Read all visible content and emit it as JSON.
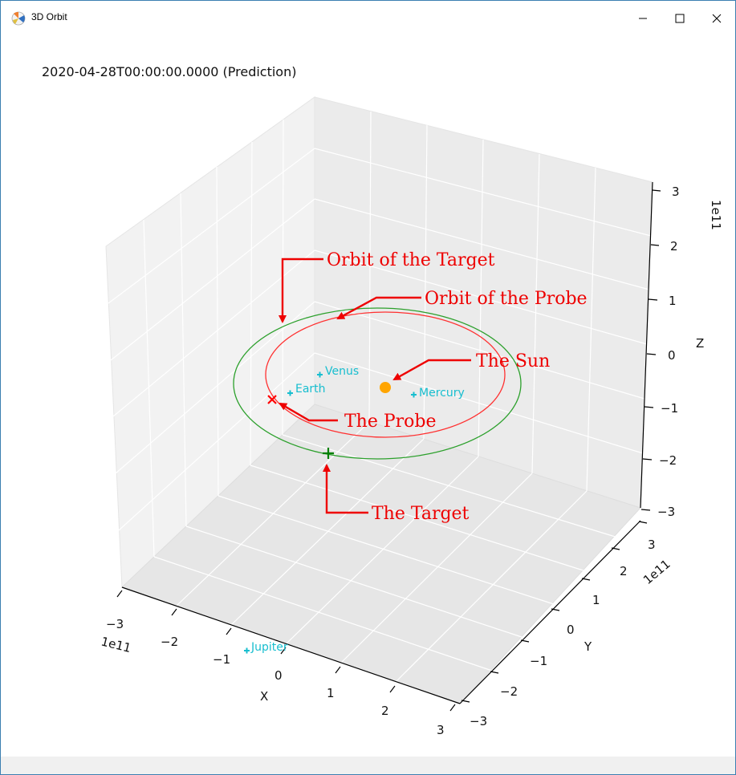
{
  "window": {
    "title": "3D Orbit",
    "controls": {
      "minimize": "minimize",
      "maximize": "maximize",
      "close": "close"
    }
  },
  "plot": {
    "timestamp": "2020-04-28T00:00:00.0000 (Prediction)",
    "axes": {
      "x": {
        "label": "X",
        "exponent": "1e11",
        "ticks": [
          "−3",
          "−2",
          "−1",
          "0",
          "1",
          "2",
          "3"
        ]
      },
      "y": {
        "label": "Y",
        "exponent": "1e11",
        "ticks": [
          "−3",
          "−2",
          "−1",
          "0",
          "1",
          "2",
          "3"
        ]
      },
      "z": {
        "label": "Z",
        "exponent": "1e11",
        "ticks": [
          "3",
          "2",
          "1",
          "0",
          "−1",
          "−2",
          "−3"
        ]
      }
    },
    "bodies": {
      "venus": "Venus",
      "earth": "Earth",
      "mercury": "Mercury",
      "jupiter": "Jupiter"
    },
    "annotations": {
      "orbit_target": "Orbit of the Target",
      "orbit_probe": "Orbit of the Probe",
      "sun": "The Sun",
      "probe": "The Probe",
      "target": "The Target"
    },
    "colors": {
      "planet": "#17becf",
      "sun": "#ffa500",
      "probe_orbit": "#ff0000",
      "target_orbit": "#008000",
      "annotation": "#ee0000"
    }
  }
}
